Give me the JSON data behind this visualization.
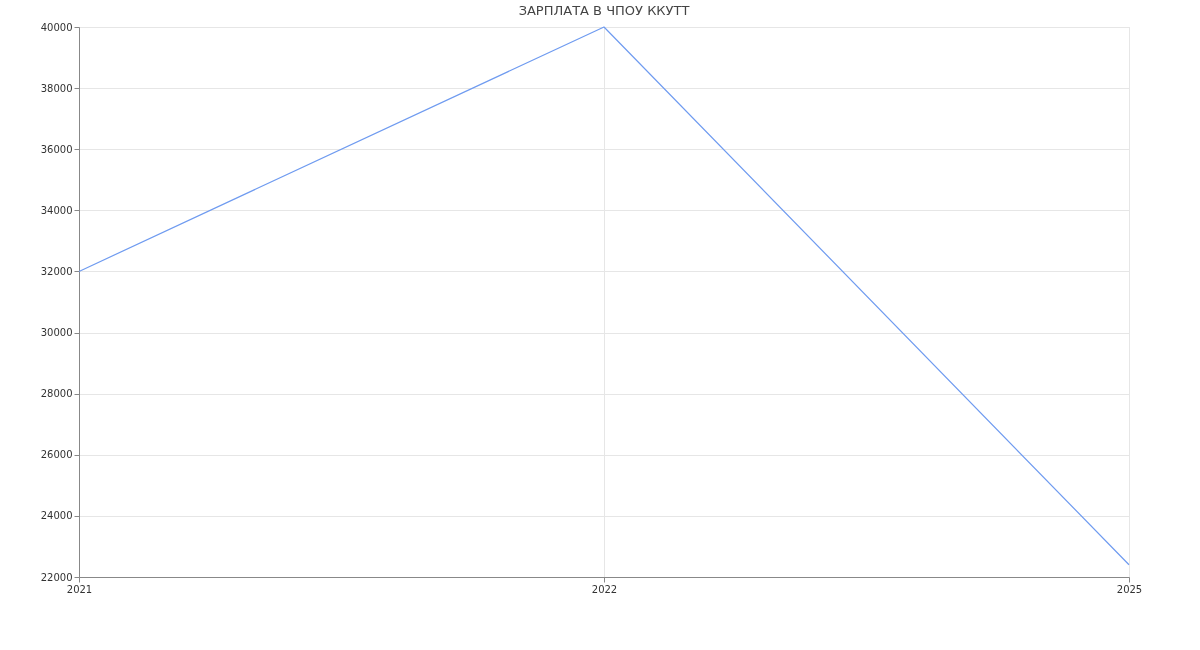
{
  "chart_data": {
    "type": "line",
    "title": "ЗАРПЛАТА В ЧПОУ ККУТТ",
    "categories": [
      "2021",
      "2022",
      "2025"
    ],
    "series": [
      {
        "color": "#6f9bf0",
        "values": [
          32000,
          40000,
          22400
        ]
      }
    ],
    "ylim": [
      22000,
      40000
    ],
    "yticks": [
      22000,
      24000,
      26000,
      28000,
      30000,
      32000,
      34000,
      36000,
      38000,
      40000
    ],
    "grid": true,
    "marker": "none",
    "line_style": "solid"
  }
}
